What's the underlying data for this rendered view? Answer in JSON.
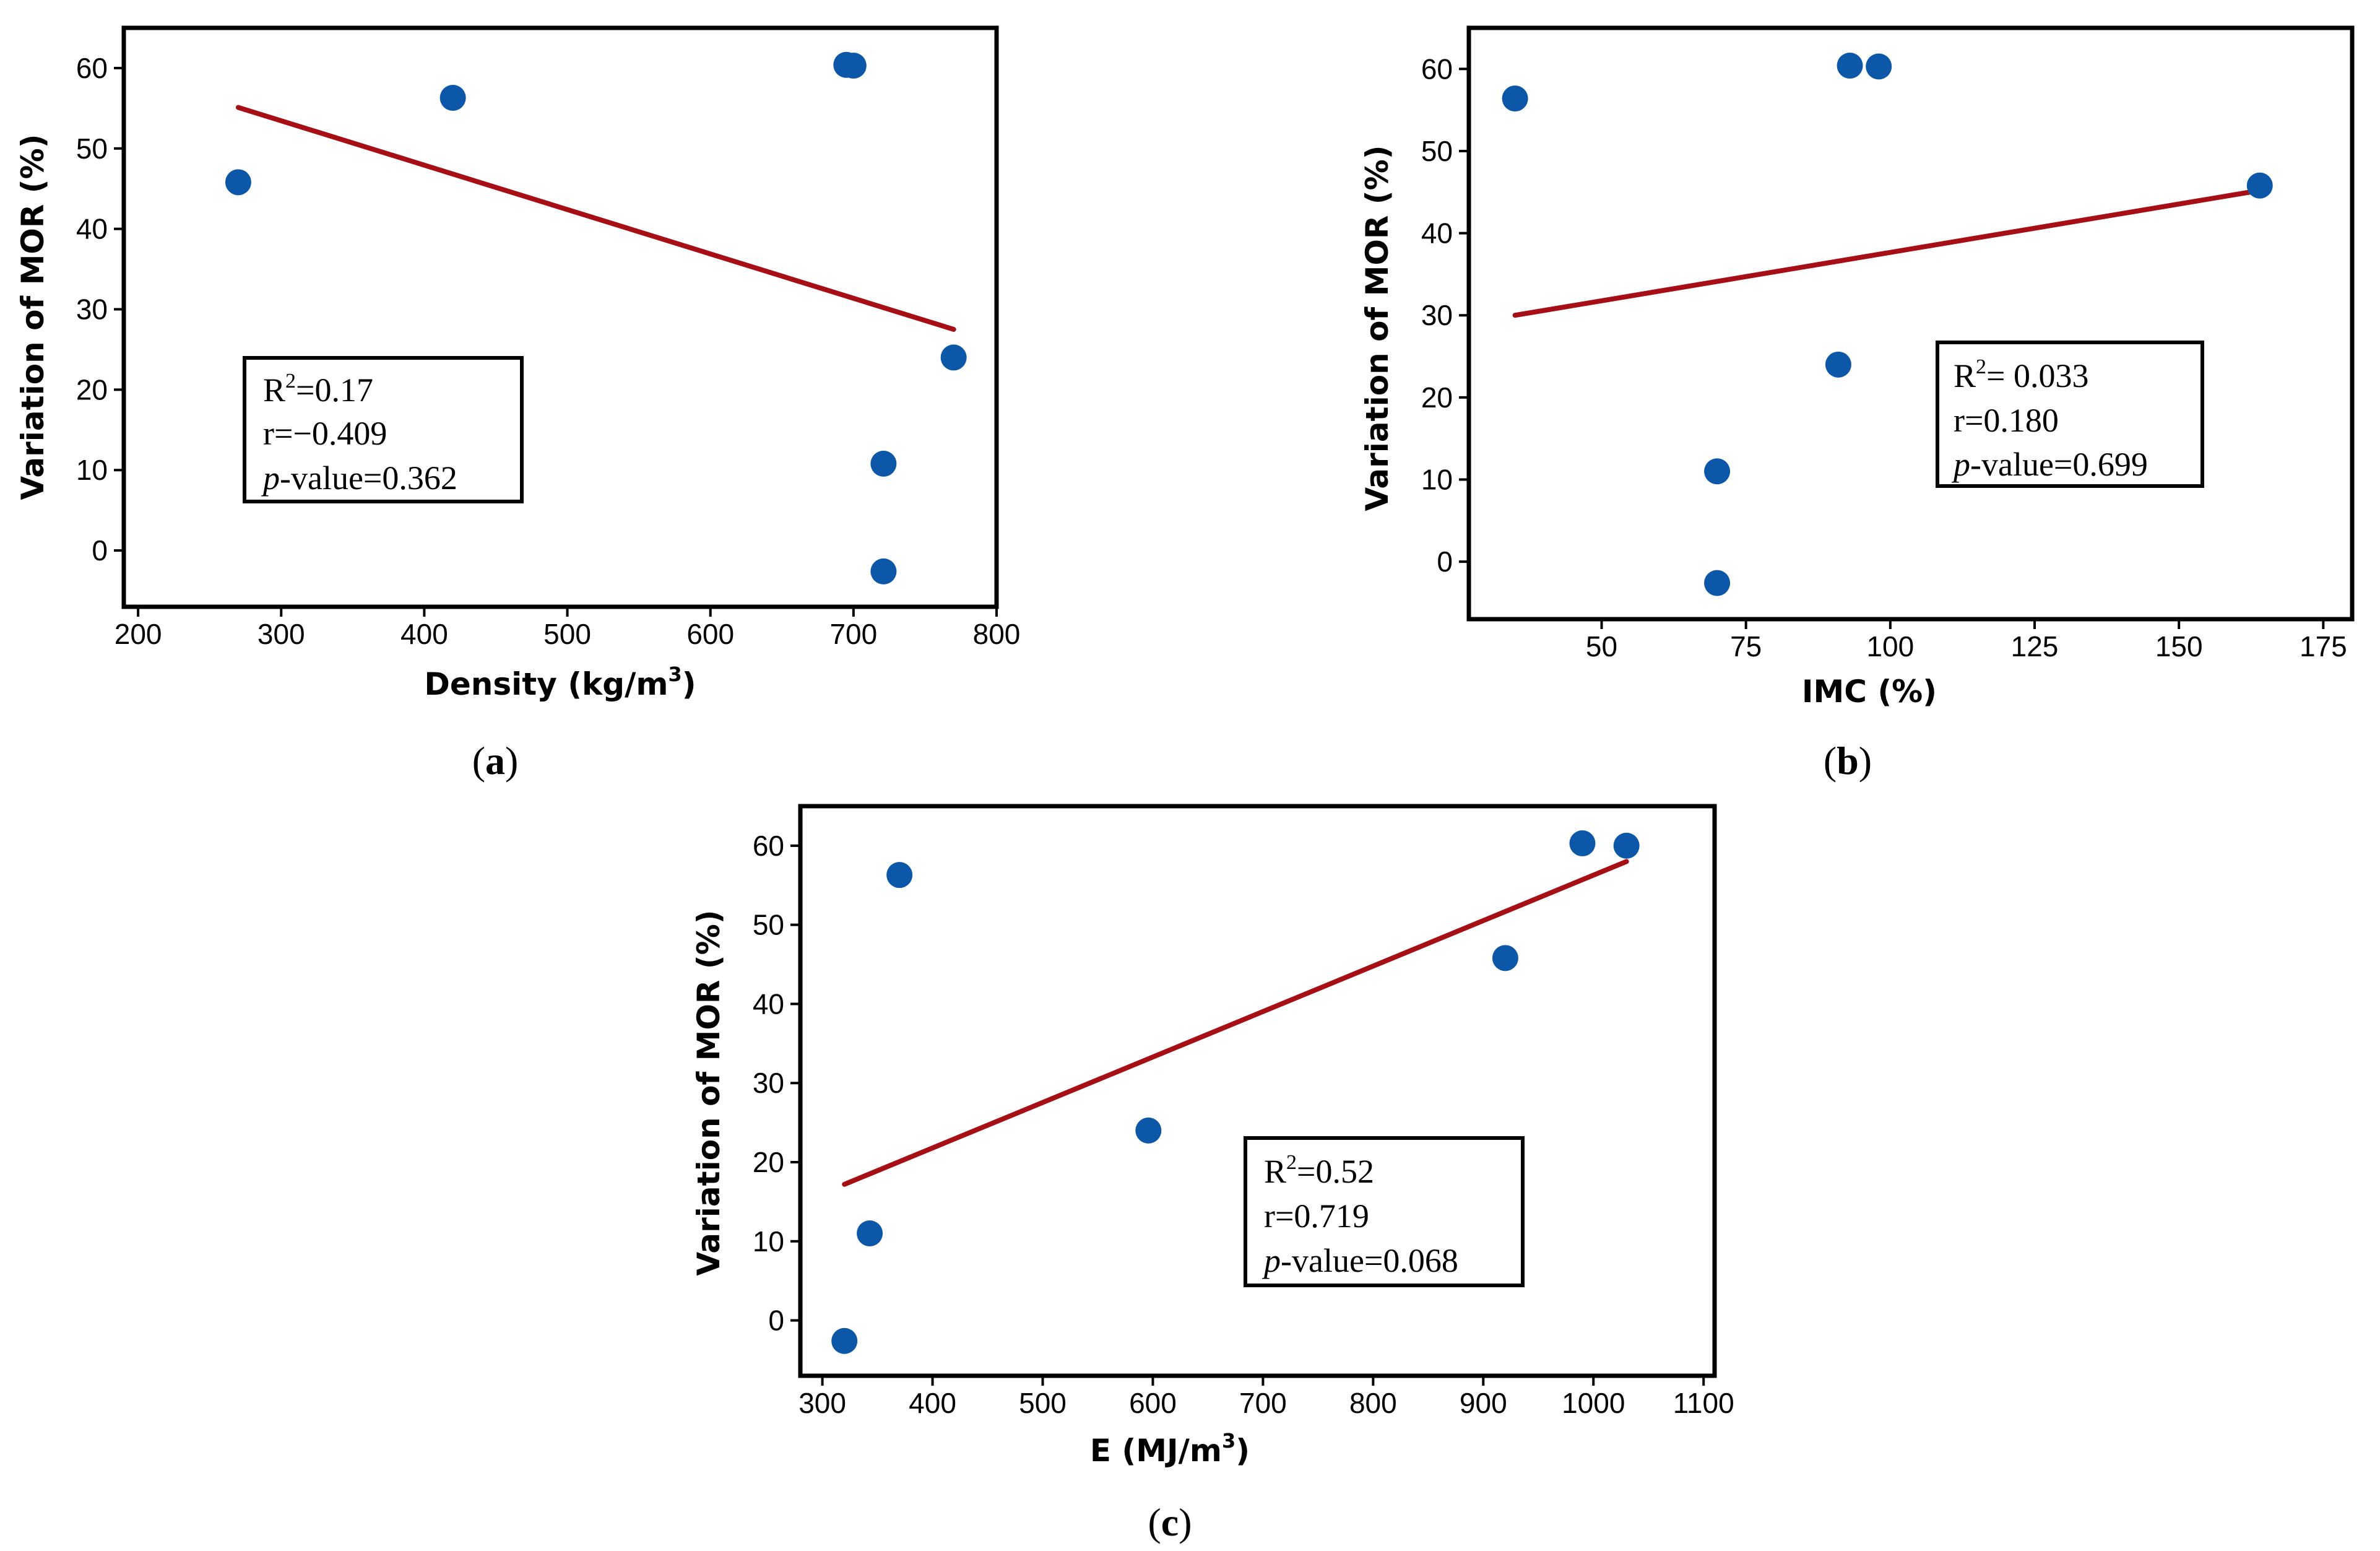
{
  "chart_data": [
    {
      "type": "scatter",
      "panel_label": "a",
      "xlabel": "Density (kg/m",
      "xlabel_sup": "3",
      "xlabel_tail": ")",
      "ylabel": "Variation of MOR (%)",
      "xlim": [
        190,
        800
      ],
      "ylim": [
        -7,
        65
      ],
      "xticks": [
        200,
        300,
        400,
        500,
        600,
        700,
        800
      ],
      "yticks": [
        0,
        10,
        20,
        30,
        40,
        50,
        60
      ],
      "points": [
        {
          "x": 270,
          "y": 45.8
        },
        {
          "x": 420,
          "y": 56.3
        },
        {
          "x": 695,
          "y": 60.4
        },
        {
          "x": 700,
          "y": 60.3
        },
        {
          "x": 770,
          "y": 24.0
        },
        {
          "x": 721,
          "y": 10.8
        },
        {
          "x": 721,
          "y": -2.6
        }
      ],
      "fit_line": {
        "x": [
          270,
          770
        ],
        "y": [
          55.1,
          27.5
        ]
      },
      "stats": {
        "r2_label": "R",
        "r2_sup": "2",
        "r2_value": "=0.17",
        "r_line": "r=−0.409",
        "p_label": "p",
        "p_value": "-value=0.362"
      }
    },
    {
      "type": "scatter",
      "panel_label": "b",
      "xlabel": "IMC (%)",
      "ylabel": "Variation of MOR (%)",
      "xlim": [
        27,
        180
      ],
      "ylim": [
        -7,
        65
      ],
      "xticks": [
        50,
        75,
        100,
        125,
        150,
        175
      ],
      "yticks": [
        0,
        10,
        20,
        30,
        40,
        50,
        60
      ],
      "points": [
        {
          "x": 35,
          "y": 56.4
        },
        {
          "x": 93,
          "y": 60.4
        },
        {
          "x": 98,
          "y": 60.3
        },
        {
          "x": 164,
          "y": 45.8
        },
        {
          "x": 91,
          "y": 24.0
        },
        {
          "x": 70,
          "y": 11.0
        },
        {
          "x": 70,
          "y": -2.6
        }
      ],
      "fit_line": {
        "x": [
          35,
          164
        ],
        "y": [
          30.0,
          45.2
        ]
      },
      "stats": {
        "r2_label": "R",
        "r2_sup": "2",
        "r2_value": "= 0.033",
        "r_line": "r=0.180",
        "p_label": "p",
        "p_value": "-value=0.699"
      }
    },
    {
      "type": "scatter",
      "panel_label": "c",
      "xlabel": "E (MJ/m",
      "xlabel_sup": "3",
      "xlabel_tail": ")",
      "ylabel": "Variation of MOR (%)",
      "xlim": [
        280,
        1110
      ],
      "ylim": [
        -7,
        65
      ],
      "xticks": [
        300,
        400,
        500,
        600,
        700,
        800,
        900,
        1000,
        1100
      ],
      "yticks": [
        0,
        10,
        20,
        30,
        40,
        50,
        60
      ],
      "points": [
        {
          "x": 370,
          "y": 56.3
        },
        {
          "x": 990,
          "y": 60.3
        },
        {
          "x": 1030,
          "y": 60.0
        },
        {
          "x": 920,
          "y": 45.8
        },
        {
          "x": 596,
          "y": 24.0
        },
        {
          "x": 343,
          "y": 11.0
        },
        {
          "x": 320,
          "y": -2.6
        }
      ],
      "fit_line": {
        "x": [
          320,
          1030
        ],
        "y": [
          17.2,
          58.0
        ]
      },
      "stats": {
        "r2_label": "R",
        "r2_sup": "2",
        "r2_value": "=0.52",
        "r_line": "r=0.719",
        "p_label": "p",
        "p_value": "-value=0.068"
      }
    }
  ]
}
